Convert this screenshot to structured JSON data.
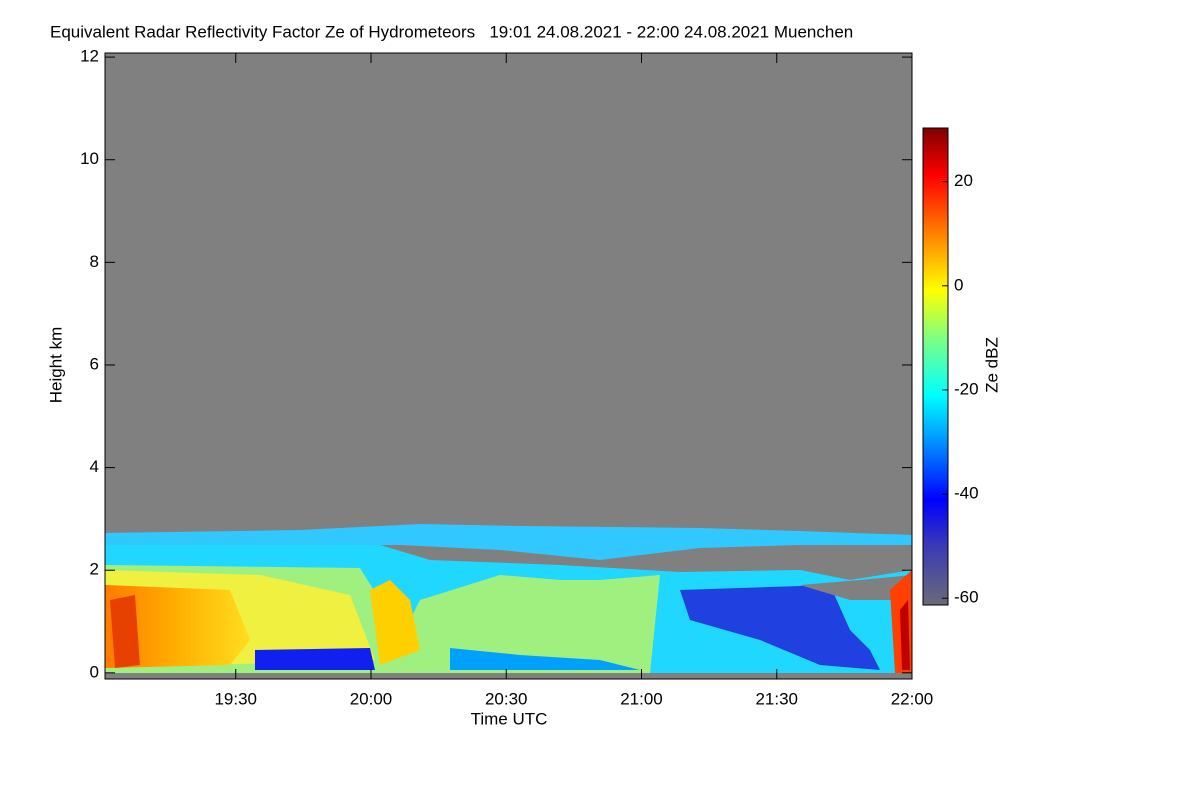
{
  "chart_data": {
    "type": "heatmap",
    "title": "Equivalent Radar Reflectivity Factor Ze of Hydrometeors   19:01 24.08.2021 - 22:00 24.08.2021 Muenchen",
    "x_label": "Time UTC",
    "y_label": "Height km",
    "colorbar_label": "Ze dBZ",
    "xlim": [
      1141,
      1320
    ],
    "xticks": [
      {
        "value": 1170,
        "label": "19:30"
      },
      {
        "value": 1200,
        "label": "20:00"
      },
      {
        "value": 1230,
        "label": "20:30"
      },
      {
        "value": 1260,
        "label": "21:00"
      },
      {
        "value": 1290,
        "label": "21:30"
      },
      {
        "value": 1320,
        "label": "22:00"
      }
    ],
    "ylim": [
      -0.12,
      12.08
    ],
    "yticks": [
      0,
      2,
      4,
      6,
      8,
      10,
      12
    ],
    "clim": [
      -61.3,
      30.3
    ],
    "cticks": [
      -60,
      -40,
      -20,
      0,
      20
    ],
    "background_color": "#808080"
  }
}
